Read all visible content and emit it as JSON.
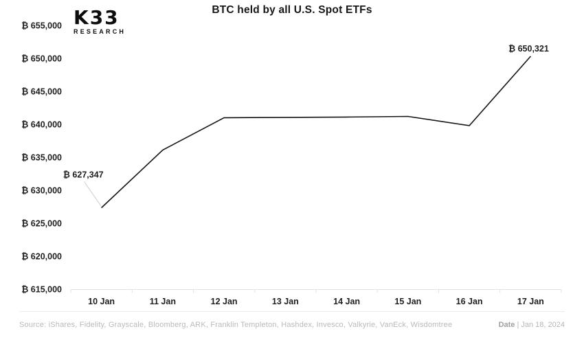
{
  "logo": {
    "primary": "K33",
    "secondary": "RESEARCH"
  },
  "chart_data": {
    "type": "line",
    "title": "BTC held by all U.S. Spot ETFs",
    "categories": [
      "10 Jan",
      "11 Jan",
      "12 Jan",
      "13 Jan",
      "14 Jan",
      "15 Jan",
      "16 Jan",
      "17 Jan"
    ],
    "values": [
      627347,
      636100,
      641000,
      641050,
      641100,
      641200,
      639800,
      650321
    ],
    "xlabel": "",
    "ylabel": "",
    "ylim": [
      615000,
      655000
    ],
    "ytick_step": 5000,
    "ytick_labels": [
      "₿ 655,000",
      "₿ 650,000",
      "₿ 645,000",
      "₿ 640,000",
      "₿ 635,000",
      "₿ 630,000",
      "₿ 625,000",
      "₿ 620,000",
      "₿ 615,000"
    ],
    "grid": false,
    "legend": false,
    "line_color": "#141414",
    "axis_color": "#e2e2e2",
    "label_color": "#1e1e1e",
    "annotations": [
      {
        "index": 0,
        "label": "₿ 627,347"
      },
      {
        "index": 7,
        "label": "₿ 650,321"
      }
    ]
  },
  "footer": {
    "source": "Source:  iShares, Fidelity, Grayscale, Bloomberg, ARK, Franklin Templeton, Hashdex, Invesco, Valkyrie, VanEck, Wisdomtree",
    "date_label": "Date",
    "date_value": "| Jan 18, 2024"
  }
}
